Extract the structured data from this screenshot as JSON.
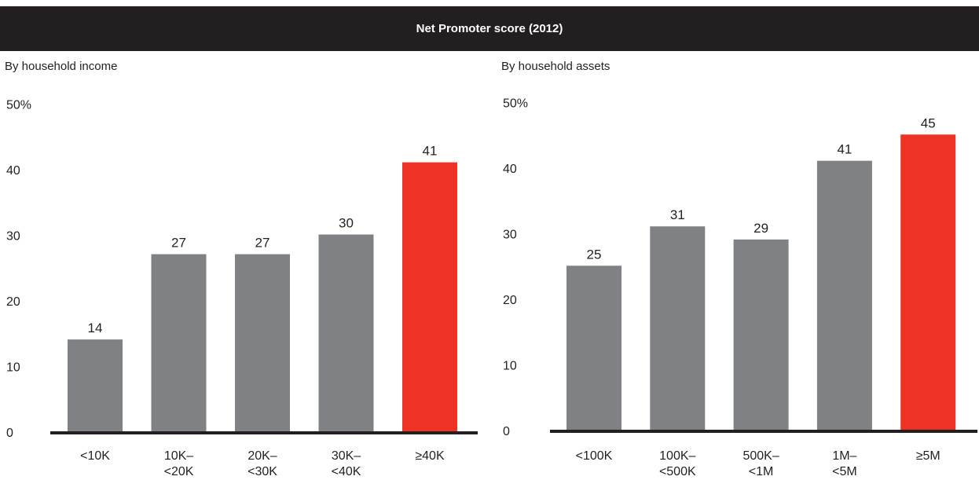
{
  "title": "Net Promoter score (2012)",
  "colors": {
    "bar": "#808184",
    "highlight": "#ee3224",
    "axis": "#231f20",
    "title_bg": "#231f20"
  },
  "chart_data": [
    {
      "type": "bar",
      "subtitle": "By household income",
      "ylim": [
        0,
        50
      ],
      "yticks": [
        "0",
        "10",
        "20",
        "30",
        "40",
        "50%"
      ],
      "categories": [
        [
          "<10K"
        ],
        [
          "10K–",
          "<20K"
        ],
        [
          "20K–",
          "<30K"
        ],
        [
          "30K–",
          "<40K"
        ],
        [
          "≥40K"
        ]
      ],
      "values": [
        14,
        27,
        27,
        30,
        41
      ],
      "highlight_index": 4
    },
    {
      "type": "bar",
      "subtitle": "By household assets",
      "ylim": [
        0,
        50
      ],
      "yticks": [
        "0",
        "10",
        "20",
        "30",
        "40",
        "50%"
      ],
      "categories": [
        [
          "<100K"
        ],
        [
          "100K–",
          "<500K"
        ],
        [
          "500K–",
          "<1M"
        ],
        [
          "1M–",
          "<5M"
        ],
        [
          "≥5M"
        ]
      ],
      "values": [
        25,
        31,
        29,
        41,
        45
      ],
      "highlight_index": 4
    }
  ]
}
